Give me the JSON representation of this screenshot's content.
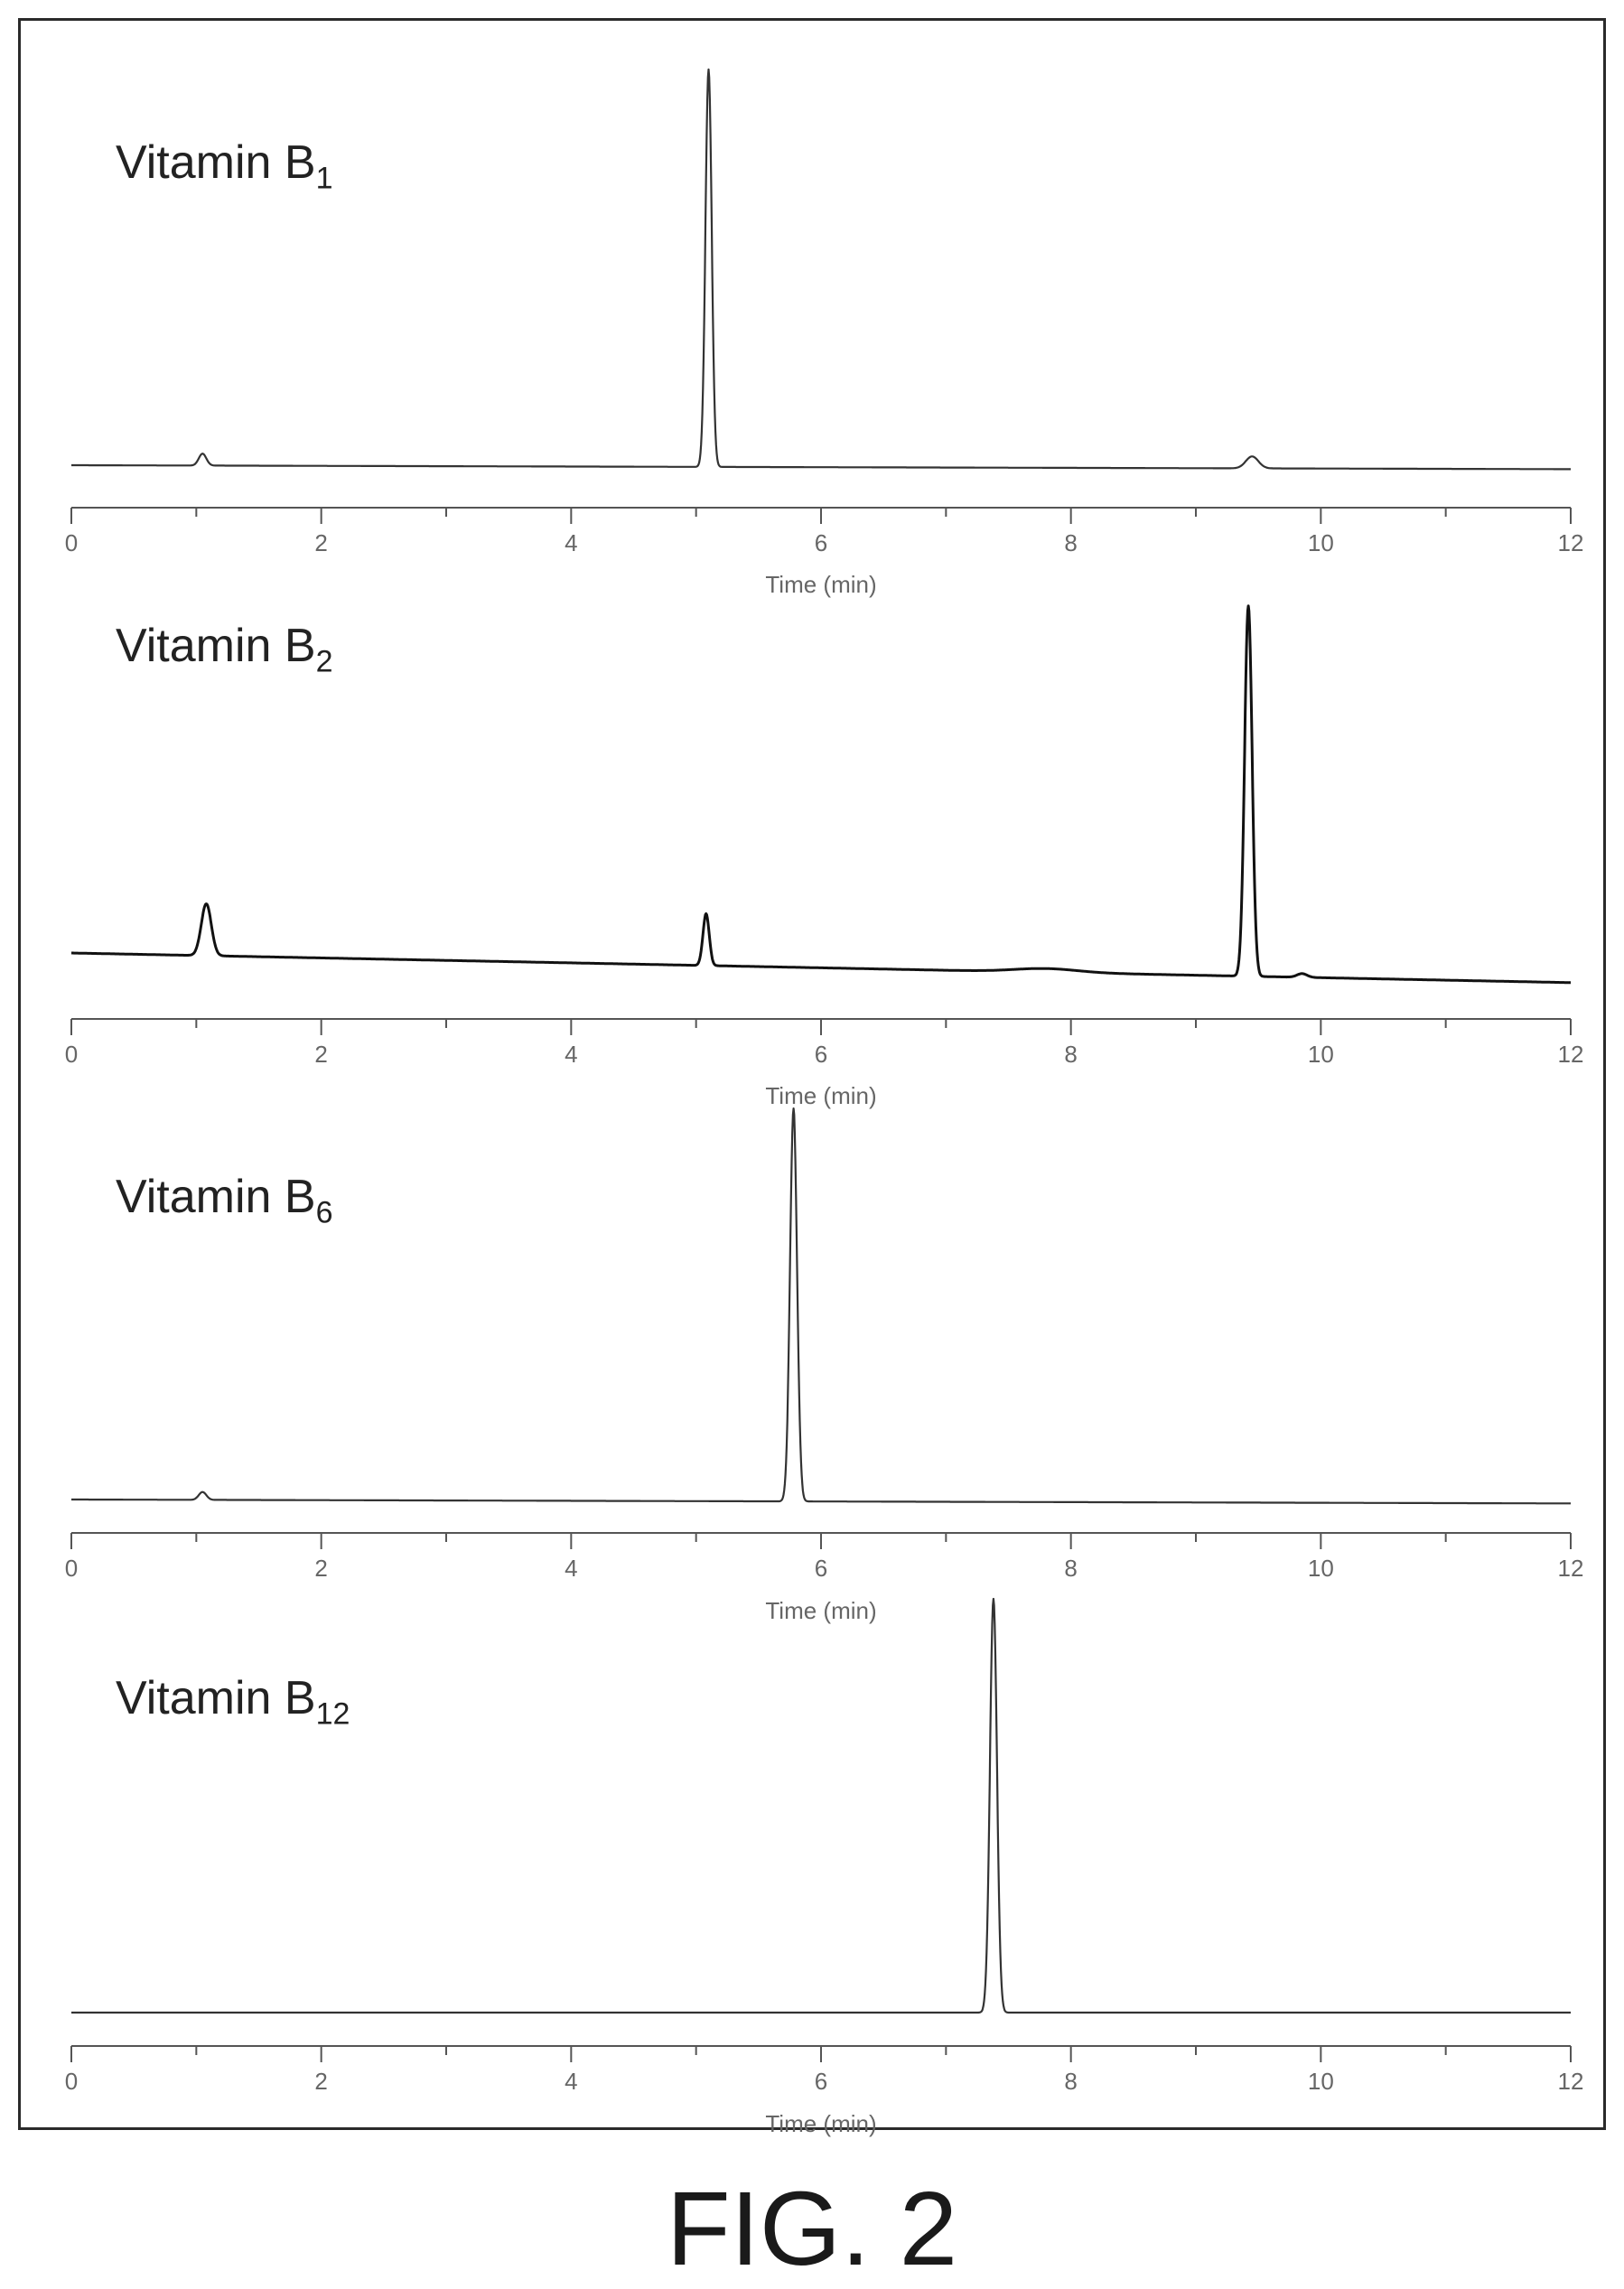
{
  "figure_caption": "FIG. 2",
  "colors": {
    "trace": "#333333",
    "trace_b2": "#111111",
    "axis": "#555555",
    "frame": "#2a2a2a"
  },
  "chart_data": [
    {
      "type": "line",
      "name_prefix": "Vitamin B",
      "name_sub": "1",
      "xlabel": "Time (min)",
      "ylabel": "",
      "xlim": [
        0,
        12
      ],
      "xticks": [
        0,
        2,
        4,
        6,
        8,
        10,
        12
      ],
      "grid": false,
      "baseline": 0.0,
      "drift": -0.01,
      "y_max": 1.0,
      "peaks": [
        {
          "t": 1.05,
          "h": 0.03,
          "w": 0.03
        },
        {
          "t": 5.1,
          "h": 1.0,
          "w": 0.025
        },
        {
          "t": 9.45,
          "h": 0.03,
          "w": 0.05
        }
      ]
    },
    {
      "type": "line",
      "name_prefix": "Vitamin B",
      "name_sub": "2",
      "xlabel": "Time (min)",
      "ylabel": "",
      "xlim": [
        0,
        12
      ],
      "xticks": [
        0,
        2,
        4,
        6,
        8,
        10,
        12
      ],
      "grid": false,
      "baseline": 0.0,
      "drift": -0.08,
      "y_max": 1.0,
      "peaks": [
        {
          "t": 1.08,
          "h": 0.14,
          "w": 0.04
        },
        {
          "t": 5.08,
          "h": 0.14,
          "w": 0.025
        },
        {
          "t": 7.8,
          "h": 0.01,
          "w": 0.25
        },
        {
          "t": 9.42,
          "h": 1.0,
          "w": 0.03
        },
        {
          "t": 9.85,
          "h": 0.01,
          "w": 0.04
        }
      ]
    },
    {
      "type": "line",
      "name_prefix": "Vitamin B",
      "name_sub": "6",
      "xlabel": "Time (min)",
      "ylabel": "",
      "xlim": [
        0,
        12
      ],
      "xticks": [
        0,
        2,
        4,
        6,
        8,
        10,
        12
      ],
      "grid": false,
      "baseline": 0.0,
      "drift": -0.01,
      "y_max": 1.0,
      "peaks": [
        {
          "t": 1.05,
          "h": 0.02,
          "w": 0.03
        },
        {
          "t": 5.78,
          "h": 1.0,
          "w": 0.028
        }
      ]
    },
    {
      "type": "line",
      "name_prefix": "Vitamin B",
      "name_sub": "12",
      "xlabel": "Time (min)",
      "ylabel": "",
      "xlim": [
        0,
        12
      ],
      "xticks": [
        0,
        2,
        4,
        6,
        8,
        10,
        12
      ],
      "grid": false,
      "baseline": 0.0,
      "drift": 0.0,
      "y_max": 1.0,
      "peaks": [
        {
          "t": 7.38,
          "h": 1.0,
          "w": 0.028
        }
      ]
    }
  ]
}
